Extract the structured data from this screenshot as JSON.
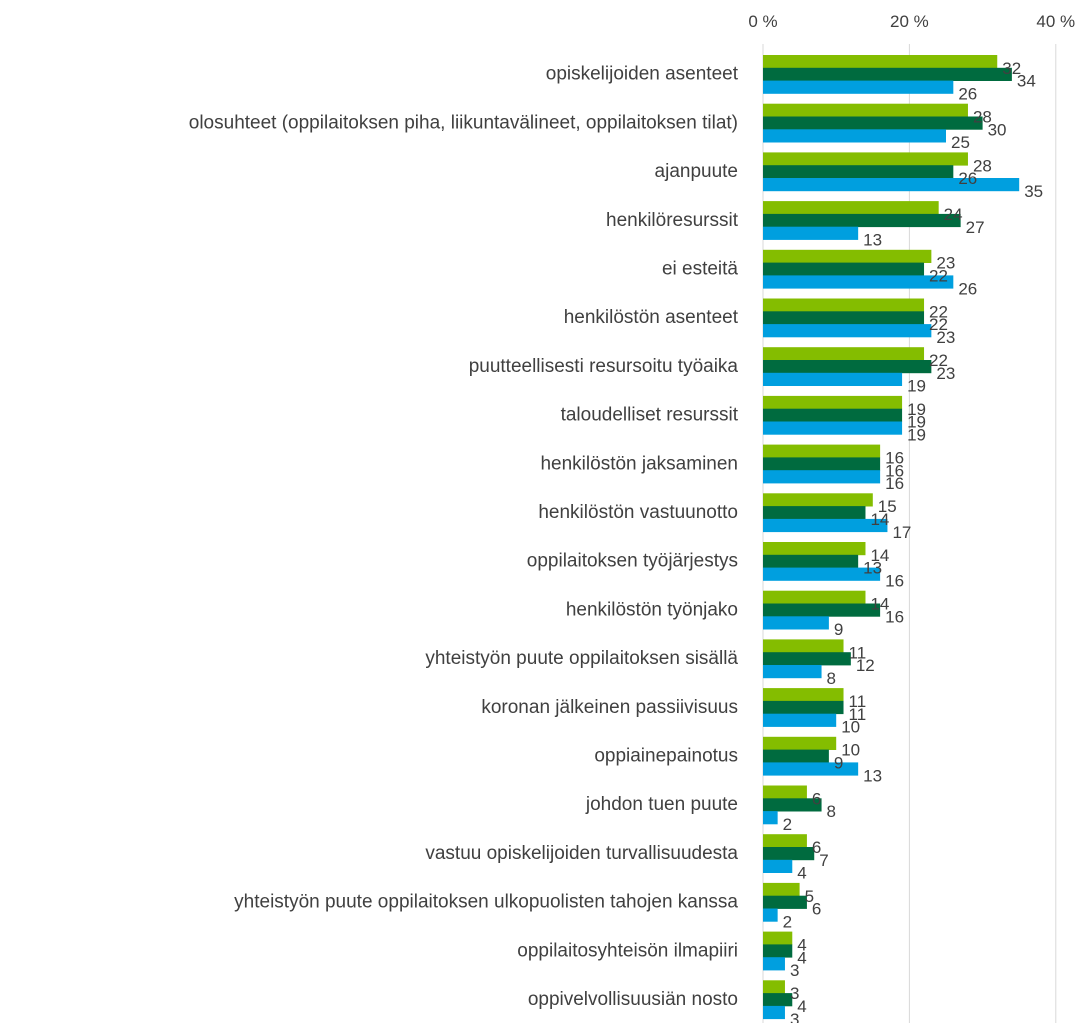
{
  "chart_data": {
    "type": "bar",
    "orientation": "horizontal",
    "title": "",
    "xlabel": "",
    "ylabel": "",
    "xlim": [
      0,
      40
    ],
    "x_ticks": [
      0,
      20,
      40
    ],
    "x_tick_labels": [
      "0 %",
      "20 %",
      "40 %"
    ],
    "x_axis_position": "top",
    "grid": "vertical",
    "legend": "none",
    "categories": [
      "opiskelijoiden asenteet",
      "olosuhteet (oppilaitoksen piha, liikuntavälineet, oppilaitoksen tilat)",
      "ajanpuute",
      "henkilöresurssit",
      "ei esteitä",
      "henkilöstön asenteet",
      "puutteellisesti resursoitu työaika",
      "taloudelliset resurssit",
      "henkilöstön jaksaminen",
      "henkilöstön vastuunotto",
      "oppilaitoksen työjärjestys",
      "henkilöstön työnjako",
      "yhteistyön puute oppilaitoksen sisällä",
      "koronan jälkeinen passiivisuus",
      "oppiainepainotus",
      "johdon tuen puute",
      "vastuu opiskelijoiden turvallisuudesta",
      "yhteistyön puute oppilaitoksen ulkopuolisten tahojen kanssa",
      "oppilaitosyhteisön ilmapiiri",
      "oppivelvollisuusiän nosto"
    ],
    "series": [
      {
        "color": "#84bd00",
        "values": [
          32,
          28,
          28,
          24,
          23,
          22,
          22,
          19,
          16,
          15,
          14,
          14,
          11,
          11,
          10,
          6,
          6,
          5,
          4,
          3
        ]
      },
      {
        "color": "#006b3f",
        "values": [
          34,
          30,
          26,
          27,
          22,
          22,
          23,
          19,
          16,
          14,
          13,
          16,
          12,
          11,
          9,
          8,
          7,
          6,
          4,
          4
        ]
      },
      {
        "color": "#009fdf",
        "values": [
          26,
          25,
          35,
          13,
          26,
          23,
          19,
          19,
          16,
          17,
          16,
          9,
          8,
          10,
          13,
          2,
          4,
          2,
          3,
          3
        ]
      }
    ]
  }
}
